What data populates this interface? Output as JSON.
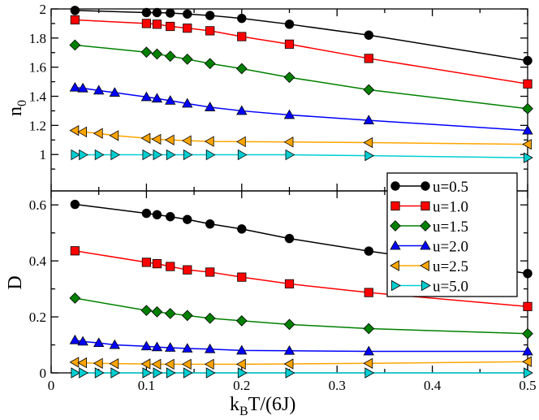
{
  "chart_data": [
    {
      "type": "line",
      "panel": "top",
      "xlabel": "",
      "ylabel": "n0",
      "ylabel_main": "n",
      "ylabel_sub": "0",
      "xlim": [
        0,
        0.5
      ],
      "ylim": [
        0.75,
        2.0
      ],
      "yticks": [
        1,
        1.2,
        1.4,
        1.6,
        1.8,
        2
      ],
      "ytick_labels": [
        "1",
        "1.2",
        "1.4",
        "1.6",
        "1.8",
        "2"
      ],
      "series": [
        {
          "name": "u=0.5",
          "color": "#000000",
          "marker": "circle",
          "x": [
            0.025,
            0.1,
            0.1111,
            0.125,
            0.1429,
            0.1667,
            0.2,
            0.25,
            0.3333,
            0.5
          ],
          "y": [
            1.99,
            1.975,
            1.975,
            1.972,
            1.965,
            1.955,
            1.935,
            1.895,
            1.82,
            1.645
          ]
        },
        {
          "name": "u=1.0",
          "color": "#ff0000",
          "marker": "square",
          "x": [
            0.025,
            0.1,
            0.1111,
            0.125,
            0.1429,
            0.1667,
            0.2,
            0.25,
            0.3333,
            0.5
          ],
          "y": [
            1.925,
            1.9,
            1.895,
            1.88,
            1.868,
            1.85,
            1.81,
            1.758,
            1.66,
            1.485
          ]
        },
        {
          "name": "u=1.5",
          "color": "#008000",
          "marker": "diamond",
          "x": [
            0.025,
            0.1,
            0.1111,
            0.125,
            0.1429,
            0.1667,
            0.2,
            0.25,
            0.3333,
            0.5
          ],
          "y": [
            1.752,
            1.703,
            1.69,
            1.675,
            1.655,
            1.625,
            1.59,
            1.53,
            1.445,
            1.315
          ]
        },
        {
          "name": "u=2.0",
          "color": "#0000ff",
          "marker": "triangle-up",
          "x": [
            0.025,
            0.0333,
            0.05,
            0.0667,
            0.1,
            0.1111,
            0.125,
            0.1429,
            0.1667,
            0.2,
            0.25,
            0.3333,
            0.5
          ],
          "y": [
            1.46,
            1.455,
            1.44,
            1.425,
            1.395,
            1.385,
            1.37,
            1.35,
            1.325,
            1.3,
            1.272,
            1.235,
            1.165
          ]
        },
        {
          "name": "u=2.5",
          "color": "#ffa500",
          "marker": "triangle-left",
          "x": [
            0.025,
            0.0333,
            0.05,
            0.0667,
            0.1,
            0.1111,
            0.125,
            0.1429,
            0.1667,
            0.2,
            0.25,
            0.3333,
            0.5
          ],
          "y": [
            1.165,
            1.155,
            1.145,
            1.13,
            1.112,
            1.105,
            1.1,
            1.095,
            1.09,
            1.088,
            1.086,
            1.082,
            1.07
          ]
        },
        {
          "name": "u=5.0",
          "color": "#00ced1",
          "marker": "triangle-right",
          "x": [
            0.025,
            0.0333,
            0.05,
            0.0667,
            0.1,
            0.1111,
            0.125,
            0.1429,
            0.1667,
            0.2,
            0.25,
            0.3333,
            0.5
          ],
          "y": [
            0.998,
            0.998,
            0.998,
            0.998,
            0.998,
            0.998,
            0.998,
            0.998,
            0.998,
            0.998,
            0.998,
            0.992,
            0.978
          ]
        }
      ]
    },
    {
      "type": "line",
      "panel": "bottom",
      "xlabel": "kBT/(6J)",
      "ylabel": "D",
      "xlim": [
        0,
        0.5
      ],
      "ylim": [
        0,
        0.65
      ],
      "xticks": [
        0,
        0.1,
        0.2,
        0.3,
        0.4,
        0.5
      ],
      "xtick_labels": [
        "0",
        "0.1",
        "0.2",
        "0.3",
        "0.4",
        "0.5"
      ],
      "yticks": [
        0,
        0.2,
        0.4,
        0.6
      ],
      "ytick_labels": [
        "0",
        "0.2",
        "0.4",
        "0.6"
      ],
      "series": [
        {
          "name": "u=0.5",
          "color": "#000000",
          "marker": "circle",
          "x": [
            0.025,
            0.1,
            0.1111,
            0.125,
            0.1429,
            0.1667,
            0.2,
            0.25,
            0.3333,
            0.5
          ],
          "y": [
            0.602,
            0.57,
            0.565,
            0.558,
            0.548,
            0.532,
            0.514,
            0.48,
            0.435,
            0.355
          ]
        },
        {
          "name": "u=1.0",
          "color": "#ff0000",
          "marker": "square",
          "x": [
            0.025,
            0.1,
            0.1111,
            0.125,
            0.1429,
            0.1667,
            0.2,
            0.25,
            0.3333,
            0.5
          ],
          "y": [
            0.436,
            0.395,
            0.39,
            0.38,
            0.368,
            0.36,
            0.342,
            0.318,
            0.287,
            0.237
          ]
        },
        {
          "name": "u=1.5",
          "color": "#008000",
          "marker": "diamond",
          "x": [
            0.025,
            0.1,
            0.1111,
            0.125,
            0.1429,
            0.1667,
            0.2,
            0.25,
            0.3333,
            0.5
          ],
          "y": [
            0.267,
            0.223,
            0.218,
            0.212,
            0.205,
            0.195,
            0.186,
            0.173,
            0.158,
            0.14
          ]
        },
        {
          "name": "u=2.0",
          "color": "#0000ff",
          "marker": "triangle-up",
          "x": [
            0.025,
            0.0333,
            0.05,
            0.0667,
            0.1,
            0.1111,
            0.125,
            0.1429,
            0.1667,
            0.2,
            0.25,
            0.3333,
            0.5
          ],
          "y": [
            0.117,
            0.112,
            0.107,
            0.1,
            0.095,
            0.092,
            0.09,
            0.087,
            0.085,
            0.08,
            0.079,
            0.077,
            0.077
          ]
        },
        {
          "name": "u=2.5",
          "color": "#ffa500",
          "marker": "triangle-left",
          "x": [
            0.025,
            0.0333,
            0.05,
            0.0667,
            0.1,
            0.1111,
            0.125,
            0.1429,
            0.1667,
            0.2,
            0.25,
            0.3333,
            0.5
          ],
          "y": [
            0.038,
            0.036,
            0.034,
            0.033,
            0.032,
            0.031,
            0.031,
            0.031,
            0.031,
            0.031,
            0.032,
            0.034,
            0.04
          ]
        },
        {
          "name": "u=5.0",
          "color": "#00ced1",
          "marker": "triangle-right",
          "x": [
            0.025,
            0.0333,
            0.05,
            0.0667,
            0.1,
            0.1111,
            0.125,
            0.1429,
            0.1667,
            0.2,
            0.25,
            0.3333,
            0.5
          ],
          "y": [
            0.0,
            0.0,
            0.0,
            0.0,
            0.0,
            0.0,
            0.0,
            0.0,
            0.0,
            0.0,
            0.0,
            0.0,
            0.0
          ]
        }
      ]
    }
  ],
  "figure": {
    "xlabel_main": "k",
    "xlabel_sub": "B",
    "xlabel_rest": "T/(6J)",
    "legend_position": "right, spanning both panels",
    "legend_entries": [
      "u=0.5",
      "u=1.0",
      "u=1.5",
      "u=2.0",
      "u=2.5",
      "u=5.0"
    ]
  }
}
